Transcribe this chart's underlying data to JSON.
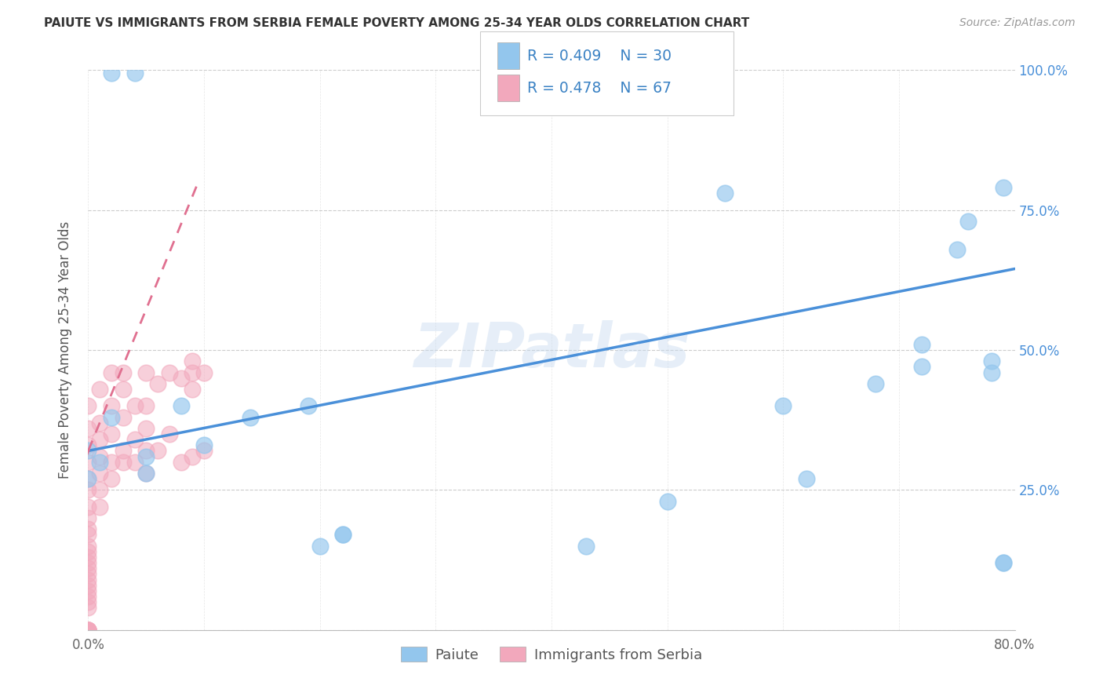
{
  "title": "PAIUTE VS IMMIGRANTS FROM SERBIA FEMALE POVERTY AMONG 25-34 YEAR OLDS CORRELATION CHART",
  "source": "Source: ZipAtlas.com",
  "ylabel": "Female Poverty Among 25-34 Year Olds",
  "xlim": [
    0.0,
    0.8
  ],
  "ylim": [
    0.0,
    1.0
  ],
  "paiute_color": "#93C6ED",
  "paiute_edge": "#93C6ED",
  "serbia_color": "#F2A8BC",
  "serbia_edge": "#F2A8BC",
  "paiute_line_color": "#4A90D9",
  "serbia_line_color": "#E07090",
  "legend_label1": "Paiute",
  "legend_label2": "Immigrants from Serbia",
  "watermark": "ZIPatlas",
  "background_color": "#FFFFFF",
  "grid_color": "#CCCCCC",
  "paiute_x": [
    0.02,
    0.04,
    0.0,
    0.0,
    0.01,
    0.02,
    0.05,
    0.05,
    0.08,
    0.1,
    0.14,
    0.19,
    0.2,
    0.22,
    0.22,
    0.43,
    0.5,
    0.55,
    0.6,
    0.62,
    0.68,
    0.72,
    0.72,
    0.75,
    0.76,
    0.78,
    0.78,
    0.79,
    0.79,
    0.79
  ],
  "paiute_y": [
    0.995,
    0.995,
    0.32,
    0.27,
    0.3,
    0.38,
    0.31,
    0.28,
    0.4,
    0.33,
    0.38,
    0.4,
    0.15,
    0.17,
    0.17,
    0.15,
    0.23,
    0.78,
    0.4,
    0.27,
    0.44,
    0.47,
    0.51,
    0.68,
    0.73,
    0.48,
    0.46,
    0.12,
    0.12,
    0.79
  ],
  "serbia_x": [
    0.0,
    0.0,
    0.0,
    0.0,
    0.0,
    0.0,
    0.0,
    0.0,
    0.0,
    0.0,
    0.0,
    0.0,
    0.0,
    0.0,
    0.0,
    0.0,
    0.0,
    0.0,
    0.0,
    0.0,
    0.0,
    0.0,
    0.0,
    0.0,
    0.0,
    0.0,
    0.0,
    0.0,
    0.0,
    0.0,
    0.01,
    0.01,
    0.01,
    0.01,
    0.01,
    0.01,
    0.01,
    0.02,
    0.02,
    0.02,
    0.02,
    0.02,
    0.03,
    0.03,
    0.03,
    0.03,
    0.03,
    0.04,
    0.04,
    0.04,
    0.05,
    0.05,
    0.05,
    0.05,
    0.05,
    0.06,
    0.06,
    0.07,
    0.07,
    0.08,
    0.08,
    0.09,
    0.09,
    0.09,
    0.09,
    0.1,
    0.1
  ],
  "serbia_y": [
    0.0,
    0.0,
    0.0,
    0.0,
    0.0,
    0.0,
    0.0,
    0.0,
    0.04,
    0.05,
    0.06,
    0.07,
    0.08,
    0.09,
    0.1,
    0.11,
    0.12,
    0.13,
    0.14,
    0.15,
    0.17,
    0.18,
    0.2,
    0.22,
    0.25,
    0.27,
    0.3,
    0.33,
    0.36,
    0.4,
    0.22,
    0.25,
    0.28,
    0.31,
    0.34,
    0.37,
    0.43,
    0.27,
    0.3,
    0.35,
    0.4,
    0.46,
    0.3,
    0.32,
    0.38,
    0.43,
    0.46,
    0.3,
    0.34,
    0.4,
    0.28,
    0.32,
    0.36,
    0.4,
    0.46,
    0.32,
    0.44,
    0.35,
    0.46,
    0.3,
    0.45,
    0.31,
    0.43,
    0.46,
    0.48,
    0.32,
    0.46
  ],
  "paiute_trend_x0": 0.0,
  "paiute_trend_y0": 0.32,
  "paiute_trend_x1": 0.8,
  "paiute_trend_y1": 0.645,
  "serbia_trend_x0": 0.0,
  "serbia_trend_y0": 0.32,
  "serbia_trend_x1": 0.095,
  "serbia_trend_y1": 0.8
}
